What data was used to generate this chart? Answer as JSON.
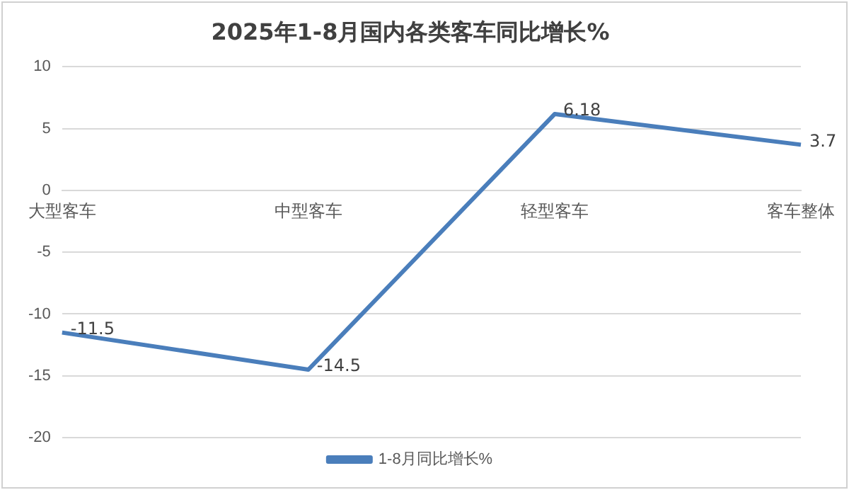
{
  "chart_data": {
    "type": "line",
    "title": "2025年1-8月国内各类客车同比增长%",
    "categories": [
      "大型客车",
      "中型客车",
      "轻型客车",
      "客车整体"
    ],
    "series": [
      {
        "name": "1-8月同比增长%",
        "color": "#4a7ebb",
        "values": [
          -11.5,
          -14.5,
          6.18,
          3.7
        ]
      }
    ],
    "ylim": [
      -20,
      10
    ],
    "yticks": [
      -20,
      -15,
      -10,
      -5,
      0,
      5,
      10
    ],
    "grid": "y",
    "legend": "bottom",
    "marker": "none",
    "line_style": "solid",
    "data_labels": true
  }
}
